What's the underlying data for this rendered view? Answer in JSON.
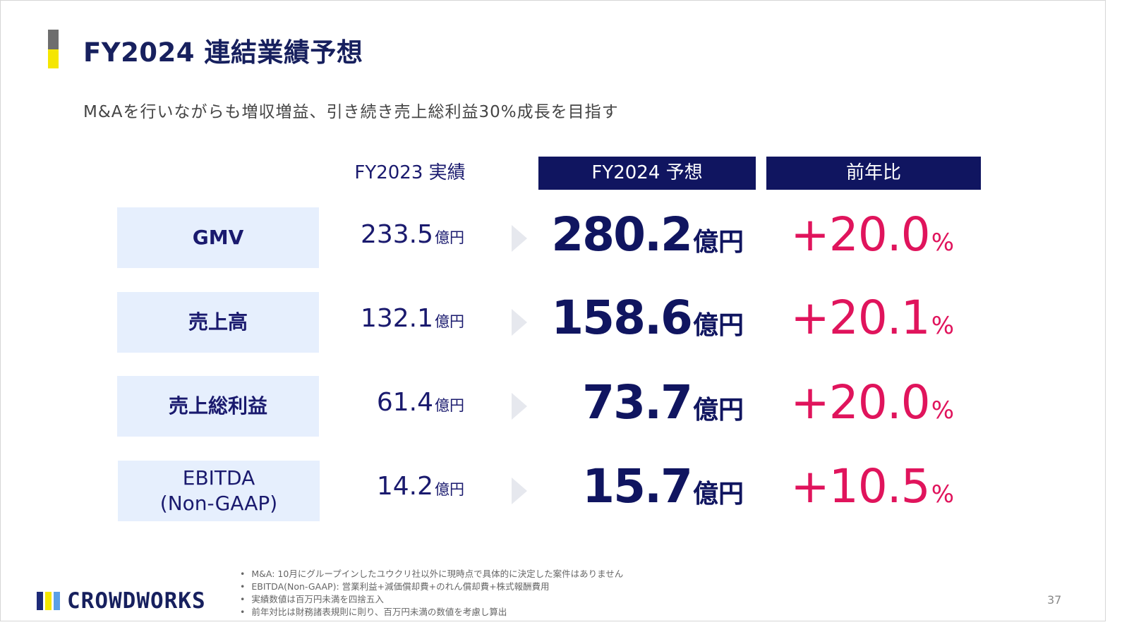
{
  "title": "FY2024 連結業績予想",
  "subtitle": "M&Aを行いながらも増収増益、引き続き売上総利益30%成長を目指す",
  "columns": {
    "actual": "FY2023 実績",
    "forecast": "FY2024 予想",
    "yoy": "前年比"
  },
  "rows": [
    {
      "label": "GMV",
      "actual": "233.5",
      "actual_unit": "億円",
      "forecast": "280.2",
      "forecast_unit": "億円",
      "yoy": "+20.0",
      "yoy_unit": "%"
    },
    {
      "label": "売上高",
      "actual": "132.1",
      "actual_unit": "億円",
      "forecast": "158.6",
      "forecast_unit": "億円",
      "yoy": "+20.1",
      "yoy_unit": "%"
    },
    {
      "label": "売上総利益",
      "actual": "61.4",
      "actual_unit": "億円",
      "forecast": "73.7",
      "forecast_unit": "億円",
      "yoy": "+20.0",
      "yoy_unit": "%"
    },
    {
      "label_line1": "EBITDA",
      "label_line2": "(Non-GAAP)",
      "actual": "14.2",
      "actual_unit": "億円",
      "forecast": "15.7",
      "forecast_unit": "億円",
      "yoy": "+10.5",
      "yoy_unit": "%"
    }
  ],
  "notes": [
    "M&A: 10月にグループインしたユウクリ社以外に現時点で具体的に決定した案件はありません",
    "EBITDA(Non-GAAP): 営業利益+減価償却費+のれん償却費+株式報酬費用",
    "実績数値は百万円未満を四捨五入",
    "前年対比は財務諸表規則に則り、百万円未満の数値を考慮し算出"
  ],
  "logo": {
    "text": "CROWDWORKS"
  },
  "page_number": "37",
  "colors": {
    "navy": "#101560",
    "magenta": "#e0145c",
    "label_bg": "#e6effd",
    "accent_yellow": "#f5e600",
    "accent_gray": "#6e6e6e"
  }
}
